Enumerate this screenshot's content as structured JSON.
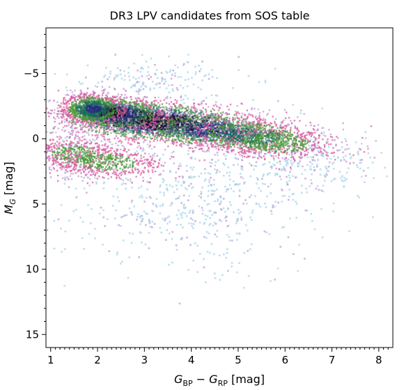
{
  "chart_data": {
    "type": "scatter",
    "title": "DR3 LPV candidates from SOS table",
    "xlabel": "G_BP − G_RP [mag]",
    "ylabel": "M_G [mag]",
    "xlim": [
      0.9,
      8.3
    ],
    "ylim": [
      16.0,
      -8.5
    ],
    "y_inverted": true,
    "x_ticks": [
      1,
      2,
      3,
      4,
      5,
      6,
      7,
      8
    ],
    "x_tick_labels": [
      "1",
      "2",
      "3",
      "4",
      "5",
      "6",
      "7",
      "8"
    ],
    "y_ticks": [
      -5,
      0,
      5,
      10,
      15
    ],
    "y_tick_labels": [
      "−5",
      "0",
      "5",
      "10",
      "15"
    ],
    "grid": false,
    "density_colormap": [
      "#a8d4ea",
      "#c49ad8",
      "#d95fa0",
      "#4c9a3a",
      "#1d6b5a",
      "#22307a",
      "#1a0a2e"
    ],
    "density_core": [
      {
        "x": 2.8,
        "y": -1.5,
        "sx": 0.45,
        "sy": 0.55,
        "level": 1.0
      },
      {
        "x": 3.6,
        "y": -1.2,
        "sx": 0.55,
        "sy": 0.55,
        "level": 0.9
      },
      {
        "x": 2.3,
        "y": -2.0,
        "sx": 0.3,
        "sy": 0.45,
        "level": 0.8
      },
      {
        "x": 4.5,
        "y": -0.6,
        "sx": 0.45,
        "sy": 0.5,
        "level": 0.7
      },
      {
        "x": 5.3,
        "y": -0.2,
        "sx": 0.4,
        "sy": 0.5,
        "level": 0.55
      },
      {
        "x": 1.9,
        "y": -2.3,
        "sx": 0.2,
        "sy": 0.45,
        "level": 0.6
      },
      {
        "x": 1.5,
        "y": 1.2,
        "sx": 0.3,
        "sy": 0.6,
        "level": 0.35
      },
      {
        "x": 2.2,
        "y": 1.8,
        "sx": 0.4,
        "sy": 0.5,
        "level": 0.35
      },
      {
        "x": 5.8,
        "y": 0.3,
        "sx": 0.45,
        "sy": 0.6,
        "level": 0.35
      }
    ],
    "scatter_regions": [
      {
        "x": 3.2,
        "y": -4.5,
        "sx": 0.9,
        "sy": 0.8,
        "n": 180
      },
      {
        "x": 4.3,
        "y": 3.5,
        "sx": 1.4,
        "sy": 2.2,
        "n": 420
      },
      {
        "x": 3.3,
        "y": 6.0,
        "sx": 1.3,
        "sy": 1.5,
        "n": 180
      },
      {
        "x": 6.4,
        "y": 1.2,
        "sx": 0.8,
        "sy": 1.0,
        "n": 200
      },
      {
        "x": 4.8,
        "y": 9.5,
        "sx": 0.9,
        "sy": 1.3,
        "n": 50
      },
      {
        "x": 1.4,
        "y": 1.0,
        "sx": 0.3,
        "sy": 1.2,
        "n": 90
      },
      {
        "x": 7.3,
        "y": 2.4,
        "sx": 0.4,
        "sy": 0.8,
        "n": 40
      }
    ]
  }
}
